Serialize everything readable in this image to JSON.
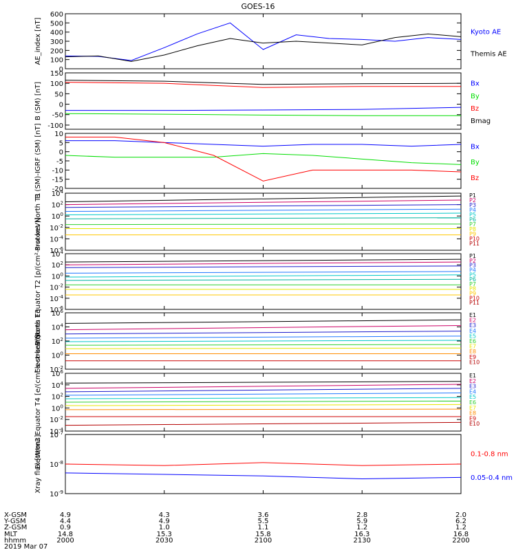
{
  "title": "GOES-16",
  "colors": {
    "black": "#000000",
    "blue": "#0000ff",
    "green": "#00dd00",
    "red": "#ff0000",
    "navy": "#1a1acc",
    "dodger": "#1e78ff",
    "cyan": "#00c8c8",
    "teal": "#00b4a0",
    "lime": "#30d030",
    "yellow": "#e6e600",
    "gold": "#ffc800",
    "orange": "#ff8c00",
    "darkred": "#cc0000",
    "crimson": "#b40000",
    "purple": "#cc0066"
  },
  "chart_data": [
    {
      "type": "line",
      "ylabel": "AE_index [nT]",
      "ylim": [
        0,
        600
      ],
      "ticks": [
        "600",
        "500",
        "400",
        "300",
        "200",
        "100",
        "0"
      ],
      "tick_values": [
        600,
        500,
        400,
        300,
        200,
        100,
        0
      ],
      "x": [
        2000,
        2010,
        2020,
        2030,
        2040,
        2050,
        2100,
        2110,
        2120,
        2130,
        2140,
        2150,
        2200
      ],
      "series": [
        {
          "name": "Kyoto AE",
          "color_key": "blue",
          "values": [
            140,
            135,
            90,
            230,
            380,
            500,
            210,
            370,
            330,
            320,
            300,
            340,
            320
          ]
        },
        {
          "name": "Themis AE",
          "color_key": "black",
          "values": [
            130,
            140,
            80,
            150,
            250,
            330,
            280,
            300,
            280,
            260,
            340,
            380,
            350
          ]
        }
      ]
    },
    {
      "type": "line",
      "ylabel": "B (SM) [nT]",
      "ylim": [
        -120,
        150
      ],
      "ticks": [
        "150",
        "100",
        "50",
        "0",
        "-50",
        "-100"
      ],
      "tick_values": [
        150,
        100,
        50,
        0,
        -50,
        -100
      ],
      "x": [
        2000,
        2030,
        2100,
        2130,
        2200
      ],
      "series": [
        {
          "name": "Bx",
          "color_key": "blue",
          "values": [
            -30,
            -30,
            -28,
            -25,
            -15
          ]
        },
        {
          "name": "By",
          "color_key": "green",
          "values": [
            -45,
            -48,
            -52,
            -55,
            -55
          ]
        },
        {
          "name": "Bz",
          "color_key": "red",
          "values": [
            105,
            100,
            80,
            85,
            85
          ]
        },
        {
          "name": "Bmag",
          "color_key": "black",
          "values": [
            115,
            110,
            95,
            98,
            100
          ]
        }
      ]
    },
    {
      "type": "line",
      "ylabel": "B (SM)-IGRF (SM) [nT]",
      "ylim": [
        -20,
        10
      ],
      "ticks": [
        "10",
        "5",
        "0",
        "-5",
        "-10",
        "-15",
        "-20"
      ],
      "tick_values": [
        10,
        5,
        0,
        -5,
        -10,
        -15,
        -20
      ],
      "x": [
        2000,
        2015,
        2030,
        2045,
        2100,
        2115,
        2130,
        2145,
        2200
      ],
      "series": [
        {
          "name": "Bx",
          "color_key": "blue",
          "values": [
            6,
            6,
            5,
            4,
            3,
            4,
            4,
            3,
            4
          ]
        },
        {
          "name": "By",
          "color_key": "green",
          "values": [
            -2,
            -3,
            -3,
            -3,
            -1,
            -2,
            -4,
            -6,
            -7
          ]
        },
        {
          "name": "Bz",
          "color_key": "red",
          "values": [
            8,
            8,
            5,
            -2,
            -16,
            -10,
            -10,
            -10,
            -11
          ]
        }
      ]
    },
    {
      "type": "line",
      "log": true,
      "ylabel": "Protons North T1",
      "ylim": [
        -6,
        4
      ],
      "ticks": [
        "10^4",
        "10^2",
        "10^0",
        "10^-2",
        "10^-4",
        "10^-6"
      ],
      "tick_values": [
        4,
        2,
        0,
        -2,
        -4,
        -6
      ],
      "x": [
        2000,
        2200
      ],
      "series": [
        {
          "name": "P1",
          "color_key": "black",
          "values": [
            2.5,
            3.5
          ]
        },
        {
          "name": "P2",
          "color_key": "purple",
          "values": [
            2.0,
            2.8
          ]
        },
        {
          "name": "P3",
          "color_key": "navy",
          "values": [
            1.5,
            2.0
          ]
        },
        {
          "name": "P4",
          "color_key": "dodger",
          "values": [
            0.8,
            1.2
          ]
        },
        {
          "name": "P5",
          "color_key": "cyan",
          "values": [
            0.2,
            0.5
          ]
        },
        {
          "name": "P6",
          "color_key": "teal",
          "values": [
            -0.5,
            -0.3
          ]
        },
        {
          "name": "P7",
          "color_key": "lime",
          "values": [
            -1.5,
            -1.4
          ]
        },
        {
          "name": "P8",
          "color_key": "yellow",
          "values": [
            -2.2,
            -2.2
          ]
        },
        {
          "name": "P9",
          "color_key": "gold",
          "values": [
            -3.3,
            -3.3
          ]
        },
        {
          "name": "P10",
          "color_key": "darkred",
          "values": [
            null,
            null
          ]
        },
        {
          "name": "P11",
          "color_key": "crimson",
          "values": [
            null,
            null
          ]
        }
      ]
    },
    {
      "type": "line",
      "log": true,
      "ylabel": "Protons Equator T2 [p/(cm²-s-sr-keV)]",
      "ylim": [
        -6,
        4
      ],
      "ticks": [
        "10^4",
        "10^2",
        "10^0",
        "10^-2",
        "10^-4",
        "10^-6"
      ],
      "tick_values": [
        4,
        2,
        0,
        -2,
        -4,
        -6
      ],
      "x": [
        2000,
        2200
      ],
      "series": [
        {
          "name": "P1",
          "color_key": "black",
          "values": [
            2.5,
            3.0
          ]
        },
        {
          "name": "P2",
          "color_key": "purple",
          "values": [
            2.0,
            2.5
          ]
        },
        {
          "name": "P3",
          "color_key": "navy",
          "values": [
            1.5,
            1.8
          ]
        },
        {
          "name": "P4",
          "color_key": "dodger",
          "values": [
            0.5,
            0.8
          ]
        },
        {
          "name": "P5",
          "color_key": "cyan",
          "values": [
            -0.2,
            0.2
          ]
        },
        {
          "name": "P6",
          "color_key": "teal",
          "values": [
            -0.8,
            -0.6
          ]
        },
        {
          "name": "P7",
          "color_key": "lime",
          "values": [
            -1.6,
            -1.6
          ]
        },
        {
          "name": "P8",
          "color_key": "yellow",
          "values": [
            -2.4,
            -2.4
          ]
        },
        {
          "name": "P9",
          "color_key": "gold",
          "values": [
            -3.4,
            -3.4
          ]
        },
        {
          "name": "P10",
          "color_key": "darkred",
          "values": [
            null,
            null
          ]
        },
        {
          "name": "P11",
          "color_key": "crimson",
          "values": [
            null,
            null
          ]
        }
      ]
    },
    {
      "type": "line",
      "log": true,
      "ylabel": "Electrons North T3",
      "ylim": [
        -2,
        6
      ],
      "ticks": [
        "10^6",
        "10^4",
        "10^2",
        "10^0",
        "10^-2"
      ],
      "tick_values": [
        6,
        4,
        2,
        0,
        -2
      ],
      "x": [
        2000,
        2200
      ],
      "series": [
        {
          "name": "E1",
          "color_key": "black",
          "values": [
            4.5,
            5.0
          ]
        },
        {
          "name": "E2",
          "color_key": "purple",
          "values": [
            3.6,
            4.2
          ]
        },
        {
          "name": "E3",
          "color_key": "navy",
          "values": [
            3.0,
            3.4
          ]
        },
        {
          "name": "E4",
          "color_key": "dodger",
          "values": [
            2.4,
            2.7
          ]
        },
        {
          "name": "E5",
          "color_key": "cyan",
          "values": [
            1.9,
            2.1
          ]
        },
        {
          "name": "E6",
          "color_key": "lime",
          "values": [
            1.4,
            1.5
          ]
        },
        {
          "name": "E7",
          "color_key": "yellow",
          "values": [
            0.9,
            1.0
          ]
        },
        {
          "name": "E8",
          "color_key": "orange",
          "values": [
            0.2,
            0.2
          ]
        },
        {
          "name": "E9",
          "color_key": "darkred",
          "values": [
            -0.8,
            -0.8
          ]
        },
        {
          "name": "E10",
          "color_key": "crimson",
          "values": [
            null,
            null
          ]
        }
      ]
    },
    {
      "type": "line",
      "log": true,
      "ylabel": "Electrons Equator T4 [e/(cm²-s-sr-keV)]",
      "ylim": [
        -4,
        6
      ],
      "ticks": [
        "10^6",
        "10^4",
        "10^2",
        "10^0",
        "10^-2",
        "10^-4"
      ],
      "tick_values": [
        6,
        4,
        2,
        0,
        -2,
        -4
      ],
      "x": [
        2000,
        2200
      ],
      "series": [
        {
          "name": "E1",
          "color_key": "black",
          "values": [
            4.3,
            4.6
          ]
        },
        {
          "name": "E2",
          "color_key": "purple",
          "values": [
            3.4,
            4.1
          ]
        },
        {
          "name": "E3",
          "color_key": "navy",
          "values": [
            2.8,
            3.4
          ]
        },
        {
          "name": "E4",
          "color_key": "dodger",
          "values": [
            2.2,
            2.6
          ]
        },
        {
          "name": "E5",
          "color_key": "cyan",
          "values": [
            1.6,
            1.8
          ]
        },
        {
          "name": "E6",
          "color_key": "lime",
          "values": [
            1.0,
            1.2
          ]
        },
        {
          "name": "E7",
          "color_key": "yellow",
          "values": [
            0.4,
            0.6
          ]
        },
        {
          "name": "E8",
          "color_key": "orange",
          "values": [
            -0.3,
            -0.2
          ]
        },
        {
          "name": "E9",
          "color_key": "darkred",
          "values": [
            -1.5,
            -1.5
          ]
        },
        {
          "name": "E10",
          "color_key": "crimson",
          "values": [
            -3,
            -2.5
          ]
        }
      ]
    },
    {
      "type": "line",
      "log": true,
      "ylabel": "Xray flux [W/m2]",
      "ylim": [
        -9,
        -7
      ],
      "ticks": [
        "10^-7",
        "10^-8",
        "10^-9"
      ],
      "tick_values": [
        -7,
        -8,
        -9
      ],
      "x": [
        2000,
        2030,
        2100,
        2130,
        2200
      ],
      "series": [
        {
          "name": "0.1-0.8 nm",
          "color_key": "red",
          "values": [
            -8.0,
            -8.05,
            -7.95,
            -8.05,
            -8.0
          ]
        },
        {
          "name": "0.05-0.4 nm",
          "color_key": "blue",
          "values": [
            -8.3,
            -8.35,
            -8.4,
            -8.5,
            -8.45
          ]
        }
      ]
    }
  ],
  "orbit_table": {
    "rows": [
      {
        "label": "X-GSM",
        "values": [
          "4.9",
          "4.3",
          "3.6",
          "2.8",
          "2.0"
        ]
      },
      {
        "label": "Y-GSM",
        "values": [
          "4.4",
          "4.9",
          "5.5",
          "5.9",
          "6.2"
        ]
      },
      {
        "label": "Z-GSM",
        "values": [
          "0.9",
          "1.0",
          "1.1",
          "1.2",
          "1.2"
        ]
      },
      {
        "label": "MLT",
        "values": [
          "14.8",
          "15.3",
          "15.8",
          "16.3",
          "16.8"
        ]
      },
      {
        "label": "hhmm",
        "values": [
          "2000",
          "2030",
          "2100",
          "2130",
          "2200"
        ]
      }
    ],
    "date": "2019 Mar 07"
  }
}
